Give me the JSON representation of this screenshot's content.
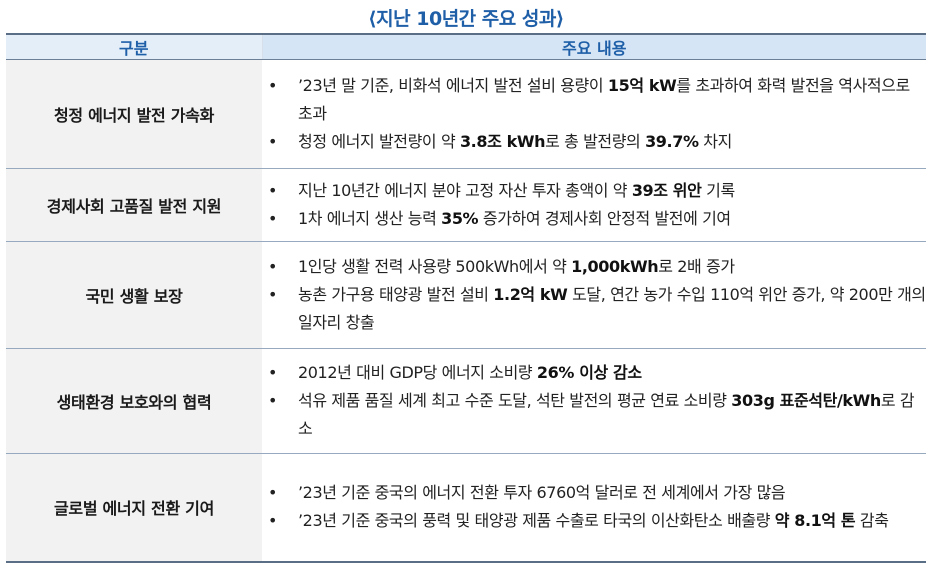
{
  "title": "⟨지난 10년간 주요 성과⟩",
  "headers": {
    "category": "구분",
    "details": "주요 내용"
  },
  "rows": [
    {
      "category": "청정 에너지 발전 가속화",
      "bullets": [
        [
          {
            "t": "’23년 말 기준, 비화석 에너지 발전 설비 용량이 ",
            "b": false
          },
          {
            "t": "15억 kW",
            "b": true
          },
          {
            "t": "를 초과하여 화력 발전을 역사적으로 초과",
            "b": false
          }
        ],
        [
          {
            "t": "청정 에너지 발전량이 약 ",
            "b": false
          },
          {
            "t": "3.8조 kWh",
            "b": true
          },
          {
            "t": "로 총 발전량의 ",
            "b": false
          },
          {
            "t": "39.7%",
            "b": true
          },
          {
            "t": " 차지",
            "b": false
          }
        ]
      ]
    },
    {
      "category": "경제사회 고품질 발전 지원",
      "bullets": [
        [
          {
            "t": "지난 10년간 에너지 분야 고정 자산 투자 총액이 약 ",
            "b": false
          },
          {
            "t": "39조 위안",
            "b": true
          },
          {
            "t": " 기록",
            "b": false
          }
        ],
        [
          {
            "t": "1차 에너지 생산 능력 ",
            "b": false
          },
          {
            "t": "35%",
            "b": true
          },
          {
            "t": " 증가하여 경제사회 안정적 발전에 기여",
            "b": false
          }
        ]
      ]
    },
    {
      "category": "국민 생활 보장",
      "bullets": [
        [
          {
            "t": "1인당 생활 전력 사용량 500kWh에서 약 ",
            "b": false
          },
          {
            "t": "1,000kWh",
            "b": true
          },
          {
            "t": "로 2배 증가",
            "b": false
          }
        ],
        [
          {
            "t": "농촌 가구용 태양광 발전 설비 ",
            "b": false
          },
          {
            "t": "1.2억 kW",
            "b": true
          },
          {
            "t": " 도달, 연간 농가 수입 110억 위안 증가, 약 200만 개의 일자리 창출",
            "b": false
          }
        ]
      ]
    },
    {
      "category": "생태환경 보호와의 협력",
      "bullets": [
        [
          {
            "t": "2012년 대비 GDP당 에너지 소비량 ",
            "b": false
          },
          {
            "t": "26% 이상 감소",
            "b": true
          }
        ],
        [
          {
            "t": "석유 제품 품질 세계 최고 수준 도달, 석탄 발전의 평균 연료 소비량 ",
            "b": false
          },
          {
            "t": "303g 표준석탄/kWh",
            "b": true
          },
          {
            "t": "로 감소",
            "b": false
          }
        ]
      ]
    },
    {
      "category": "글로벌 에너지 전환 기여",
      "bullets": [
        [
          {
            "t": "’23년 기준 중국의 에너지 전환 투자 6760억 달러로 전 세계에서 가장 많음",
            "b": false
          }
        ],
        [
          {
            "t": "’23년 기준 중국의 풍력 및 태양광 제품 수출로 타국의 이산화탄소 배출량 ",
            "b": false
          },
          {
            "t": "약 8.1억 톤",
            "b": true
          },
          {
            "t": " 감축",
            "b": false
          }
        ]
      ]
    }
  ]
}
